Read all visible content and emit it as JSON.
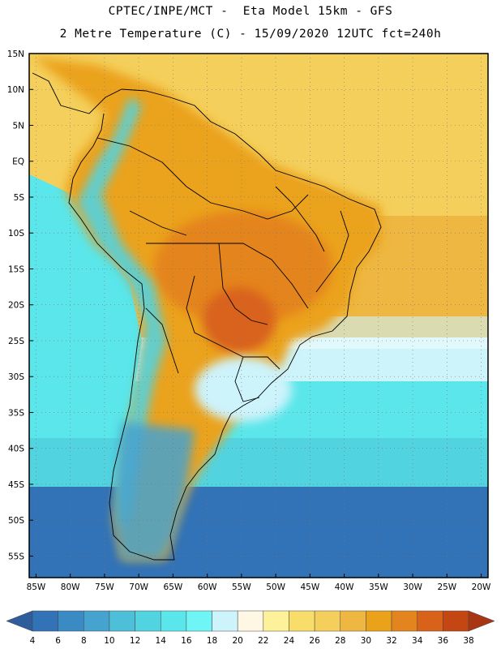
{
  "header": {
    "line1": "CPTEC/INPE/MCT -  Eta Model 15km - GFS",
    "line2": "2 Metre Temperature (C) - 15/09/2020 12UTC fct=240h"
  },
  "map": {
    "lat_labels": [
      "15N",
      "10N",
      "5N",
      "EQ",
      "5S",
      "10S",
      "15S",
      "20S",
      "25S",
      "30S",
      "35S",
      "40S",
      "45S",
      "50S",
      "55S"
    ],
    "lon_labels": [
      "85W",
      "80W",
      "75W",
      "70W",
      "65W",
      "60W",
      "55W",
      "50W",
      "45W",
      "40W",
      "35W",
      "30W",
      "25W",
      "20W"
    ],
    "lat_range": [
      15,
      -58
    ],
    "lon_range": [
      -86,
      -19
    ],
    "grid": "dotted",
    "field": "2 metre temperature",
    "region_temperatures_c": {
      "atlantic_equatorial": 26,
      "amazon_basin": 30,
      "central_brazil": 33,
      "mato_grosso_do_sul": 35,
      "northeast_brazil": 29,
      "southern_brazil_uruguay": 19,
      "patagonia": 8,
      "andes": 12,
      "pacific_coast_peru_chile": 15,
      "southern_ocean": 5,
      "south_atlantic_30s": 18
    }
  },
  "colorbar": {
    "labels": [
      "4",
      "6",
      "8",
      "10",
      "12",
      "14",
      "16",
      "18",
      "20",
      "22",
      "24",
      "26",
      "28",
      "30",
      "32",
      "34",
      "36",
      "38"
    ],
    "colors": [
      "#2f5d9c",
      "#3272b7",
      "#3a8ac4",
      "#46a2cf",
      "#4ebfd8",
      "#52d3e0",
      "#5ae6ea",
      "#6ff5f5",
      "#cdf3fb",
      "#fdf7e3",
      "#fdf29a",
      "#f9dd6a",
      "#f4cf5b",
      "#eeb741",
      "#eba21b",
      "#e4841f",
      "#d9621a",
      "#c44713",
      "#a83613"
    ],
    "under_color": "#2f5d9c",
    "over_color": "#a83613"
  }
}
